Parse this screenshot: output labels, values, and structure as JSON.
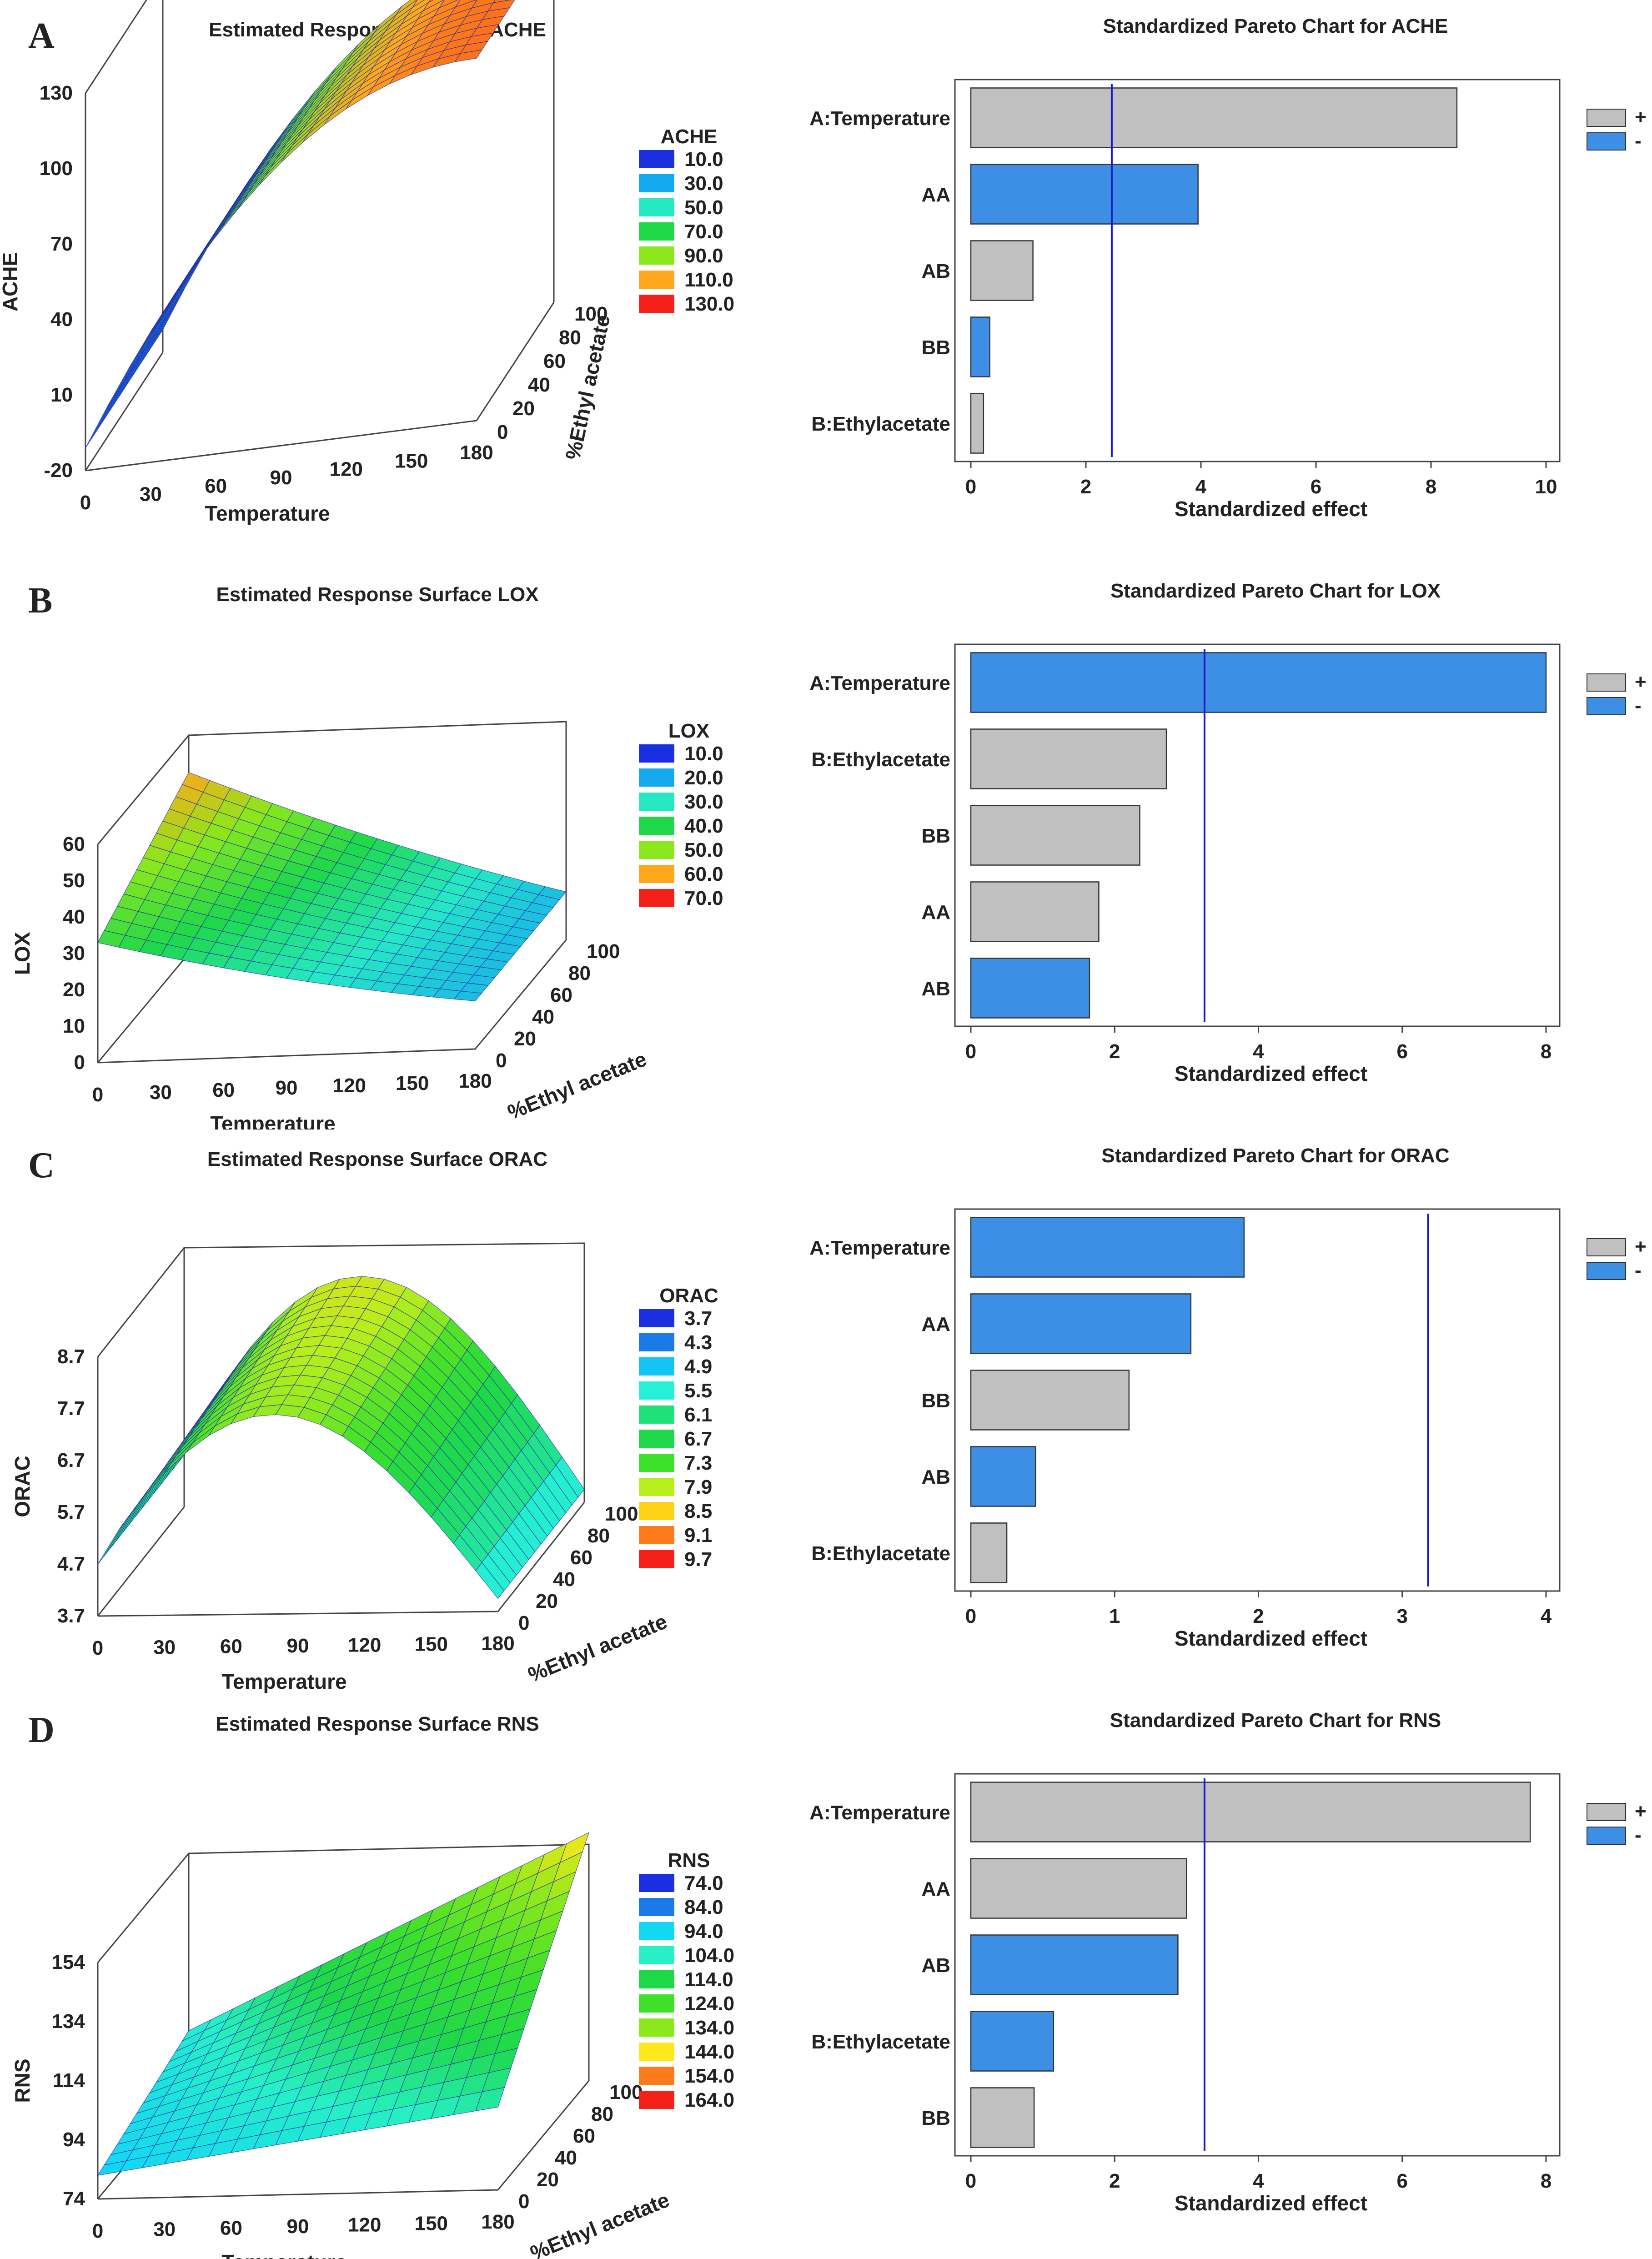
{
  "panels": [
    {
      "letter": "A",
      "surface": {
        "title": "Estimated Response Surface ACHE",
        "zlabel": "ACHE",
        "xlabel": "Temperature",
        "ylabel": "%Ethyl acetate",
        "zticks": [
          "130",
          "100",
          "70",
          "40",
          "10",
          "-20"
        ],
        "xticks": [
          "0",
          "30",
          "60",
          "90",
          "120",
          "150",
          "180"
        ],
        "yticks": [
          "100",
          "80",
          "60",
          "40",
          "20",
          "0"
        ],
        "legend_title": "ACHE",
        "legend": [
          {
            "label": "10.0",
            "color": "#1a2fe0"
          },
          {
            "label": "30.0",
            "color": "#14a8ef"
          },
          {
            "label": "50.0",
            "color": "#26e8c4"
          },
          {
            "label": "70.0",
            "color": "#1ed84a"
          },
          {
            "label": "90.0",
            "color": "#8ae81c"
          },
          {
            "label": "110.0",
            "color": "#ffa71a"
          },
          {
            "label": "130.0",
            "color": "#f5201a"
          }
        ],
        "shape": "ache"
      },
      "pareto": {
        "title": "Standardized Pareto Chart for ACHE",
        "xlabel": "Standardized effect",
        "xmax": 10,
        "xticks": [
          "0",
          "2",
          "4",
          "6",
          "8",
          "10"
        ],
        "threshold": 2.45,
        "legend": [
          "+",
          "-"
        ],
        "bars": [
          {
            "label": "A:Temperature",
            "value": 8.45,
            "sign": "+"
          },
          {
            "label": "AA",
            "value": 3.95,
            "sign": "-"
          },
          {
            "label": "AB",
            "value": 1.08,
            "sign": "+"
          },
          {
            "label": "BB",
            "value": 0.33,
            "sign": "-"
          },
          {
            "label": "B:Ethylacetate",
            "value": 0.22,
            "sign": "+"
          }
        ]
      }
    },
    {
      "letter": "B",
      "surface": {
        "title": "Estimated Response Surface LOX",
        "zlabel": "LOX",
        "xlabel": "Temperature",
        "ylabel": "%Ethyl acetate",
        "zticks": [
          "60",
          "50",
          "40",
          "30",
          "20",
          "10",
          "0"
        ],
        "xticks": [
          "0",
          "30",
          "60",
          "90",
          "120",
          "150",
          "180"
        ],
        "yticks": [
          "0",
          "20",
          "40",
          "60",
          "80",
          "100"
        ],
        "legend_title": "LOX",
        "legend": [
          {
            "label": "10.0",
            "color": "#1a2fe0"
          },
          {
            "label": "20.0",
            "color": "#14a8ef"
          },
          {
            "label": "30.0",
            "color": "#26e8c4"
          },
          {
            "label": "40.0",
            "color": "#1ed84a"
          },
          {
            "label": "50.0",
            "color": "#8ae81c"
          },
          {
            "label": "60.0",
            "color": "#ffa71a"
          },
          {
            "label": "70.0",
            "color": "#f5201a"
          }
        ],
        "shape": "lox"
      },
      "pareto": {
        "title": "Standardized Pareto Chart for LOX",
        "xlabel": "Standardized effect",
        "xmax": 8,
        "xticks": [
          "0",
          "2",
          "4",
          "6",
          "8"
        ],
        "threshold": 3.25,
        "legend": [
          "+",
          "-"
        ],
        "bars": [
          {
            "label": "A:Temperature",
            "value": 8.0,
            "sign": "-"
          },
          {
            "label": "B:Ethylacetate",
            "value": 2.72,
            "sign": "+"
          },
          {
            "label": "BB",
            "value": 2.35,
            "sign": "+"
          },
          {
            "label": "AA",
            "value": 1.78,
            "sign": "+"
          },
          {
            "label": "AB",
            "value": 1.65,
            "sign": "-"
          }
        ]
      }
    },
    {
      "letter": "C",
      "surface": {
        "title": "Estimated Response Surface ORAC",
        "zlabel": "ORAC",
        "xlabel": "Temperature",
        "ylabel": "%Ethyl acetate",
        "zticks": [
          "8.7",
          "7.7",
          "6.7",
          "5.7",
          "4.7",
          "3.7"
        ],
        "xticks": [
          "0",
          "30",
          "60",
          "90",
          "120",
          "150",
          "180"
        ],
        "yticks": [
          "0",
          "20",
          "40",
          "60",
          "80",
          "100"
        ],
        "legend_title": "ORAC",
        "legend": [
          {
            "label": "3.7",
            "color": "#1a2fe0"
          },
          {
            "label": "4.3",
            "color": "#1a7ae8"
          },
          {
            "label": "4.9",
            "color": "#14c4f2"
          },
          {
            "label": "5.5",
            "color": "#26f0d8"
          },
          {
            "label": "6.1",
            "color": "#20e07a"
          },
          {
            "label": "6.7",
            "color": "#1ed84a"
          },
          {
            "label": "7.3",
            "color": "#3ee02a"
          },
          {
            "label": "7.9",
            "color": "#b8ee1c"
          },
          {
            "label": "8.5",
            "color": "#ffd21a"
          },
          {
            "label": "9.1",
            "color": "#ff7a1a"
          },
          {
            "label": "9.7",
            "color": "#f5201a"
          }
        ],
        "shape": "orac"
      },
      "pareto": {
        "title": "Standardized Pareto Chart for ORAC",
        "xlabel": "Standardized effect",
        "xmax": 4,
        "xticks": [
          "0",
          "1",
          "2",
          "3",
          "4"
        ],
        "threshold": 3.18,
        "legend": [
          "+",
          "-"
        ],
        "bars": [
          {
            "label": "A:Temperature",
            "value": 1.9,
            "sign": "-"
          },
          {
            "label": "AA",
            "value": 1.53,
            "sign": "-"
          },
          {
            "label": "BB",
            "value": 1.1,
            "sign": "+"
          },
          {
            "label": "AB",
            "value": 0.45,
            "sign": "-"
          },
          {
            "label": "B:Ethylacetate",
            "value": 0.25,
            "sign": "+"
          }
        ]
      }
    },
    {
      "letter": "D",
      "surface": {
        "title": "Estimated Response Surface RNS",
        "zlabel": "RNS",
        "xlabel": "Temperature",
        "ylabel": "%Ethyl acetate",
        "zticks": [
          "154",
          "134",
          "114",
          "94",
          "74"
        ],
        "xticks": [
          "0",
          "30",
          "60",
          "90",
          "120",
          "150",
          "180"
        ],
        "yticks": [
          "0",
          "20",
          "40",
          "60",
          "80",
          "100"
        ],
        "legend_title": "RNS",
        "legend": [
          {
            "label": "74.0",
            "color": "#1a2fe0"
          },
          {
            "label": "84.0",
            "color": "#1a7ae8"
          },
          {
            "label": "94.0",
            "color": "#14d8f2"
          },
          {
            "label": "104.0",
            "color": "#26f0c4"
          },
          {
            "label": "114.0",
            "color": "#1ed84a"
          },
          {
            "label": "124.0",
            "color": "#3ee02a"
          },
          {
            "label": "134.0",
            "color": "#8ae81c"
          },
          {
            "label": "144.0",
            "color": "#ffe81a"
          },
          {
            "label": "154.0",
            "color": "#ff7a1a"
          },
          {
            "label": "164.0",
            "color": "#f5201a"
          }
        ],
        "shape": "rns"
      },
      "pareto": {
        "title": "Standardized Pareto Chart for RNS",
        "xlabel": "Standardized effect",
        "xmax": 8,
        "xticks": [
          "0",
          "2",
          "4",
          "6",
          "8"
        ],
        "threshold": 3.25,
        "legend": [
          "+",
          "-"
        ],
        "bars": [
          {
            "label": "A:Temperature",
            "value": 7.78,
            "sign": "+"
          },
          {
            "label": "AA",
            "value": 3.0,
            "sign": "+"
          },
          {
            "label": "AB",
            "value": 2.88,
            "sign": "-"
          },
          {
            "label": "B:Ethylacetate",
            "value": 1.15,
            "sign": "-"
          },
          {
            "label": "BB",
            "value": 0.88,
            "sign": "+"
          }
        ]
      }
    }
  ],
  "colors": {
    "positive": "#c0c0c0",
    "negative": "#3d8fe6",
    "threshold": "#1a1acc",
    "mesh": "#2222aa"
  }
}
